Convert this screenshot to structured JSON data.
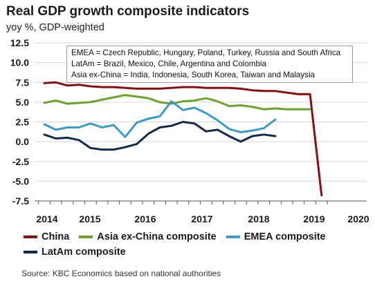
{
  "title": "Real GDP growth composite indicators",
  "subtitle": "yoy %, GDP-weighted",
  "annotation": [
    "EMEA = Czech Republic, Hungary, Poland, Turkey, Russia and South Africa",
    "LatAm = Brazil, Mexico, Chile, Argentina and Colombia",
    "Asia ex-China = India, Indonesia, South Korea, Taiwan and Malaysia"
  ],
  "source": "Source: KBC Economics based on national authorities",
  "colors": {
    "china": "#8b0d0d",
    "asia": "#6aa329",
    "emea": "#3a9bc7",
    "latam": "#0f2a4a",
    "grid": "#d6d6d6"
  },
  "chart_data": {
    "type": "line",
    "title": "Real GDP growth composite indicators",
    "subtitle": "yoy %, GDP-weighted",
    "ylim": [
      -7.5,
      12.5
    ],
    "yticks": [
      "12.5",
      "10.0",
      "7.5",
      "5.0",
      "2.5",
      "0.0",
      "-2.5",
      "-5.0",
      "-7.5"
    ],
    "xtick_labels": [
      "2014",
      "2015",
      "2016",
      "2017",
      "2018",
      "2019",
      "2020"
    ],
    "grid": "horizontal",
    "legend_position": "bottom",
    "x": [
      "2014Q1",
      "2014Q2",
      "2014Q3",
      "2014Q4",
      "2015Q1",
      "2015Q2",
      "2015Q3",
      "2015Q4",
      "2016Q1",
      "2016Q2",
      "2016Q3",
      "2016Q4",
      "2017Q1",
      "2017Q2",
      "2017Q3",
      "2017Q4",
      "2018Q1",
      "2018Q2",
      "2018Q3",
      "2018Q4",
      "2019Q1",
      "2019Q2",
      "2019Q3",
      "2019Q4",
      "2020Q1"
    ],
    "series": [
      {
        "name": "China",
        "key": "china",
        "values": [
          7.4,
          7.5,
          7.1,
          7.2,
          7.0,
          6.9,
          6.9,
          6.8,
          6.7,
          6.7,
          6.7,
          6.8,
          6.9,
          6.9,
          6.8,
          6.8,
          6.8,
          6.7,
          6.5,
          6.4,
          6.4,
          6.2,
          6.0,
          6.0,
          -6.8
        ]
      },
      {
        "name": "Asia ex-China composite",
        "key": "asia",
        "values": [
          4.9,
          5.2,
          4.8,
          4.9,
          5.0,
          5.3,
          5.6,
          5.9,
          5.7,
          5.5,
          5.0,
          4.8,
          5.1,
          5.2,
          5.5,
          5.1,
          4.5,
          4.6,
          4.4,
          4.1,
          4.2,
          4.1,
          4.1,
          4.1,
          null
        ]
      },
      {
        "name": "EMEA composite",
        "key": "emea",
        "values": [
          2.2,
          1.5,
          1.8,
          1.8,
          2.3,
          1.8,
          2.1,
          0.6,
          2.4,
          2.9,
          3.2,
          5.1,
          4.0,
          4.3,
          3.6,
          2.7,
          1.6,
          1.2,
          1.4,
          1.7,
          2.8,
          null,
          null,
          null,
          null
        ]
      },
      {
        "name": "LatAm composite",
        "key": "latam",
        "values": [
          0.9,
          0.4,
          0.5,
          0.2,
          -0.8,
          -1.0,
          -1.0,
          -0.7,
          -0.3,
          1.0,
          1.8,
          2.0,
          2.5,
          2.3,
          1.3,
          1.5,
          0.7,
          0.0,
          0.7,
          0.9,
          0.7,
          null,
          null,
          null,
          null
        ]
      }
    ]
  },
  "legend": [
    {
      "label": "China",
      "key": "china"
    },
    {
      "label": "Asia ex-China composite",
      "key": "asia"
    },
    {
      "label": "EMEA composite",
      "key": "emea"
    },
    {
      "label": "LatAm composite",
      "key": "latam"
    }
  ]
}
